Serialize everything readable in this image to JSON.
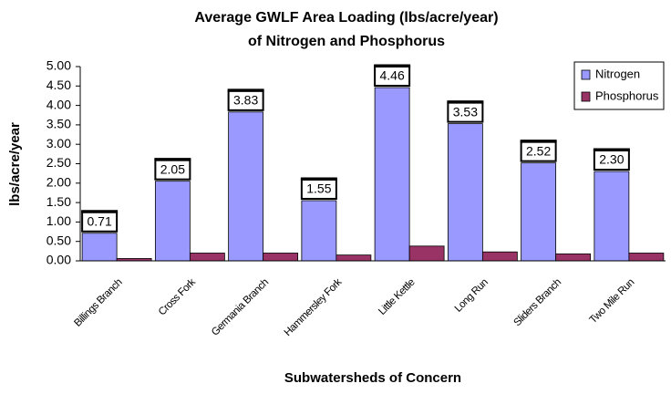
{
  "chart_data": {
    "type": "bar",
    "title": [
      "Average GWLF Area Loading (lbs/acre/year)",
      "of Nitrogen and Phosphorus"
    ],
    "x_label": "Subwatersheds of Concern",
    "y_label": "lbs/acre/year",
    "categories": [
      "Billings Branch",
      "Cross Fork",
      "Germania Branch",
      "Hammersley Fork",
      "Little Kettle",
      "Long Run",
      "Sliders Branch",
      "Two Mile Run"
    ],
    "series": [
      {
        "name": "Nitrogen",
        "color": "#9999ff",
        "values": [
          0.71,
          2.05,
          3.83,
          1.55,
          4.46,
          3.53,
          2.52,
          2.3
        ],
        "value_labels": [
          "0.71",
          "2.05",
          "3.83",
          "1.55",
          "4.46",
          "3.53",
          "2.52",
          "2.30"
        ]
      },
      {
        "name": "Phosphorus",
        "color": "#993366",
        "values": [
          0.06,
          0.2,
          0.2,
          0.15,
          0.38,
          0.23,
          0.18,
          0.2
        ]
      }
    ],
    "ylim": [
      0,
      5
    ],
    "yticks": [
      {
        "value": 0,
        "label": "0.00"
      },
      {
        "value": 0.5,
        "label": "0.50"
      },
      {
        "value": 1,
        "label": "1.00"
      },
      {
        "value": 1.5,
        "label": "1.50"
      },
      {
        "value": 2,
        "label": "2.00"
      },
      {
        "value": 2.5,
        "label": "2.50"
      },
      {
        "value": 3,
        "label": "3.00"
      },
      {
        "value": 3.5,
        "label": "3.50"
      },
      {
        "value": 4,
        "label": "4.00"
      },
      {
        "value": 4.5,
        "label": "4.50"
      },
      {
        "value": 5,
        "label": "5.00"
      }
    ],
    "grid": false,
    "legend": "top-right"
  }
}
